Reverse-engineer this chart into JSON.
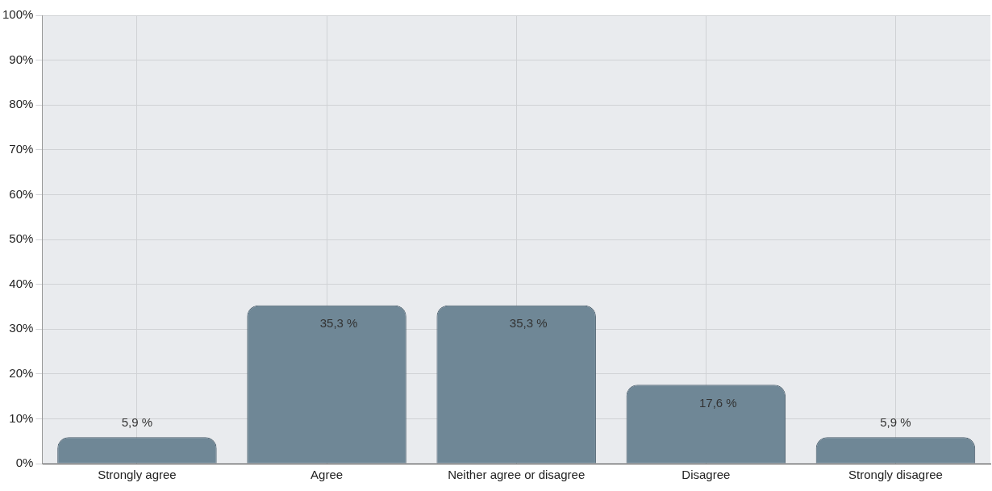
{
  "chart_data": {
    "type": "bar",
    "categories": [
      "Strongly agree",
      "Agree",
      "Neither agree or disagree",
      "Disagree",
      "Strongly disagree"
    ],
    "values": [
      5.9,
      35.3,
      35.3,
      17.6,
      5.9
    ],
    "value_labels": [
      "5,9 %",
      "35,3 %",
      "35,3 %",
      "17,6 %",
      "5,9 %"
    ],
    "color": "#6f8796",
    "ylim": [
      0,
      100
    ],
    "yticks": [
      {
        "value": 0,
        "label": "0%"
      },
      {
        "value": 10,
        "label": "10%"
      },
      {
        "value": 20,
        "label": "20%"
      },
      {
        "value": 30,
        "label": "30%"
      },
      {
        "value": 40,
        "label": "40%"
      },
      {
        "value": 50,
        "label": "50%"
      },
      {
        "value": 60,
        "label": "60%"
      },
      {
        "value": 70,
        "label": "70%"
      },
      {
        "value": 80,
        "label": "80%"
      },
      {
        "value": 90,
        "label": "90%"
      },
      {
        "value": 100,
        "label": "100%"
      }
    ],
    "grid": true,
    "legend": false
  }
}
